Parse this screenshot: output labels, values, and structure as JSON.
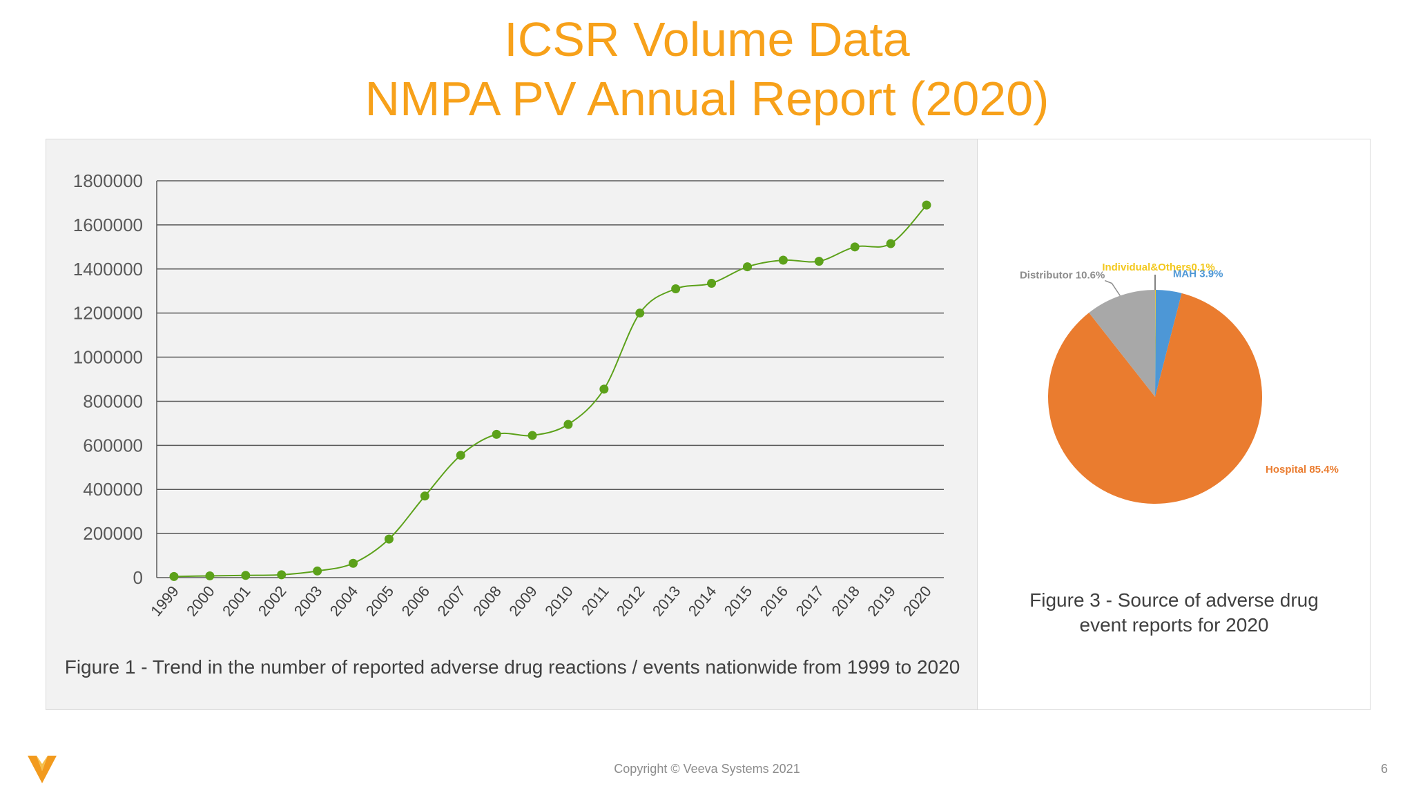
{
  "slide": {
    "title_line1": "ICSR Volume Data",
    "title_line2": "NMPA PV Annual Report (2020)",
    "footer": "Copyright © Veeva Systems 2021",
    "page_number": "6",
    "accent_color": "#f7a11a",
    "logo_icon": "veeva-v-logo-icon"
  },
  "figure1": {
    "caption": "Figure 1 - Trend in the number of reported adverse drug reactions / events nationwide from 1999 to 2020"
  },
  "figure3": {
    "caption_line1": "Figure 3 - Source of adverse drug",
    "caption_line2": "event reports for 2020"
  },
  "chart_data": [
    {
      "type": "line",
      "title": "",
      "xlabel": "",
      "ylabel": "",
      "x": [
        "1999",
        "2000",
        "2001",
        "2002",
        "2003",
        "2004",
        "2005",
        "2006",
        "2007",
        "2008",
        "2009",
        "2010",
        "2011",
        "2012",
        "2013",
        "2014",
        "2015",
        "2016",
        "2017",
        "2018",
        "2019",
        "2020"
      ],
      "series": [
        {
          "values": [
            5000,
            8000,
            10000,
            13000,
            30000,
            65000,
            175000,
            370000,
            555000,
            650000,
            645000,
            695000,
            855000,
            1200000,
            1310000,
            1335000,
            1410000,
            1440000,
            1435000,
            1500000,
            1515000,
            1690000
          ],
          "color": "#5ca11a"
        }
      ],
      "yticks": [
        0,
        200000,
        400000,
        600000,
        800000,
        1000000,
        1200000,
        1400000,
        1600000,
        1800000
      ],
      "ylim": [
        0,
        1800000
      ],
      "grid": true,
      "legend": "none"
    },
    {
      "type": "pie",
      "slices": [
        {
          "label": "Individual&Others0.1%",
          "value": 0.1,
          "color": "#f3c81d"
        },
        {
          "label": "MAH 3.9%",
          "value": 3.9,
          "color": "#4d97d6"
        },
        {
          "label": "Hospital 85.4%",
          "value": 85.4,
          "color": "#ea7c2f"
        },
        {
          "label": "Distributor 10.6%",
          "value": 10.6,
          "color": "#a8a8a8"
        }
      ],
      "legend": "none"
    }
  ]
}
